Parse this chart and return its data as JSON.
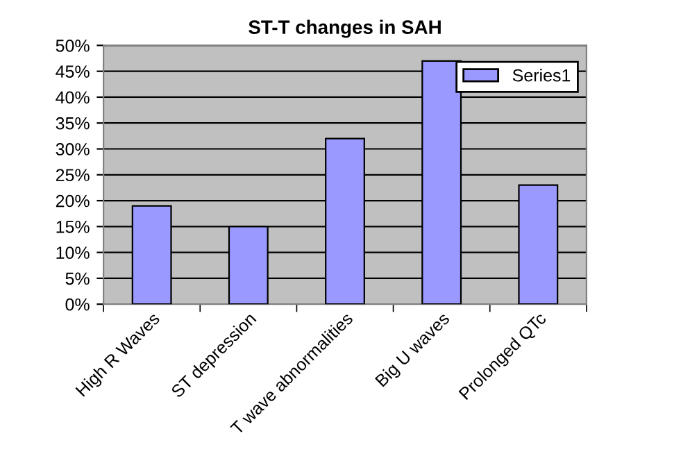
{
  "chart_data": {
    "type": "bar",
    "title": "ST-T changes in SAH",
    "categories": [
      "High R Waves",
      "ST depression",
      "T wave abnormalities",
      "Big U waves",
      "Prolonged QTc"
    ],
    "series": [
      {
        "name": "Series1",
        "color": "#9999ff",
        "values": [
          19,
          15,
          32,
          47,
          23
        ]
      }
    ],
    "ylim": [
      0,
      50
    ],
    "yticks": [
      {
        "value": 0,
        "label": "0%"
      },
      {
        "value": 5,
        "label": "5%"
      },
      {
        "value": 10,
        "label": "10%"
      },
      {
        "value": 15,
        "label": "15%"
      },
      {
        "value": 20,
        "label": "20%"
      },
      {
        "value": 25,
        "label": "25%"
      },
      {
        "value": 30,
        "label": "30%"
      },
      {
        "value": 35,
        "label": "35%"
      },
      {
        "value": 40,
        "label": "40%"
      },
      {
        "value": 45,
        "label": "45%"
      },
      {
        "value": 50,
        "label": "50%"
      }
    ],
    "grid": "y",
    "legend": "top right"
  }
}
